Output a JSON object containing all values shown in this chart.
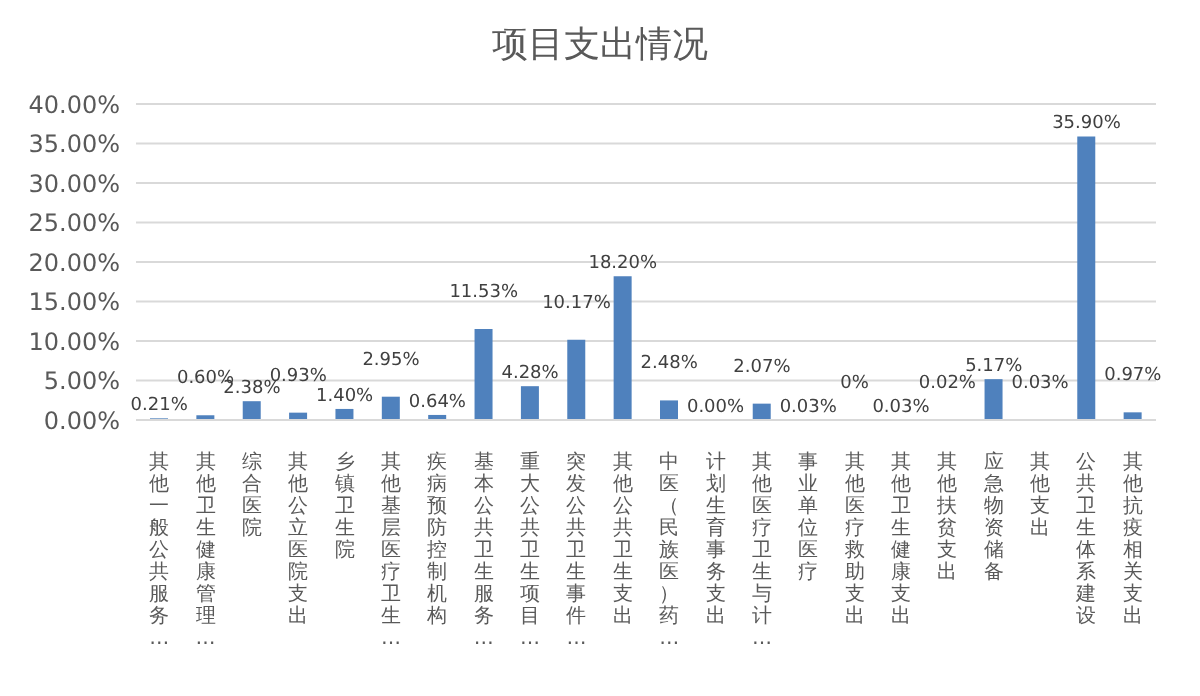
{
  "chart_data": {
    "type": "bar",
    "title": "项目支出情况",
    "categories": [
      "其他一般公共服务…",
      "其他卫生健康管理…",
      "综合医院",
      "其他公立医院支出",
      "乡镇卫生院",
      "其他基层医疗卫生…",
      "疾病预防控制机构",
      "基本公共卫生服务…",
      "重大公共卫生项目…",
      "突发公共卫生事件…",
      "其他公共卫生支出",
      "中医（民族医）药…",
      "计划生育事务支出",
      "其他医疗卫生与计…",
      "事业单位医疗",
      "其他医疗救助支出",
      "其他卫生健康支出",
      "其他扶贫支出",
      "应急物资储备",
      "其他支出",
      "公共卫生体系建设",
      "其他抗疫相关支出"
    ],
    "values": [
      0.21,
      0.6,
      2.38,
      0.93,
      1.4,
      2.95,
      0.64,
      11.53,
      4.28,
      10.17,
      18.2,
      2.48,
      0.0,
      2.07,
      0.03,
      0,
      0.03,
      0.02,
      5.17,
      0.03,
      35.9,
      0.97
    ],
    "value_labels": [
      "0.21%",
      "0.60%",
      "2.38%",
      "0.93%",
      "1.40%",
      "2.95%",
      "0.64%",
      "11.53%",
      "4.28%",
      "10.17%",
      "18.20%",
      "2.48%",
      "0.00%",
      "2.07%",
      "0.03%",
      "0%",
      "0.03%",
      "0.02%",
      "5.17%",
      "0.03%",
      "35.90%",
      "0.97%"
    ],
    "color": "#4f81bd",
    "ylim": [
      0,
      40
    ],
    "yticks": [
      {
        "value": 0,
        "label": "0.00%"
      },
      {
        "value": 5,
        "label": "5.00%"
      },
      {
        "value": 10,
        "label": "10.00%"
      },
      {
        "value": 15,
        "label": "15.00%"
      },
      {
        "value": 20,
        "label": "20.00%"
      },
      {
        "value": 25,
        "label": "25.00%"
      },
      {
        "value": 30,
        "label": "30.00%"
      },
      {
        "value": 35,
        "label": "35.00%"
      },
      {
        "value": 40,
        "label": "40.00%"
      }
    ],
    "grid": "y"
  }
}
